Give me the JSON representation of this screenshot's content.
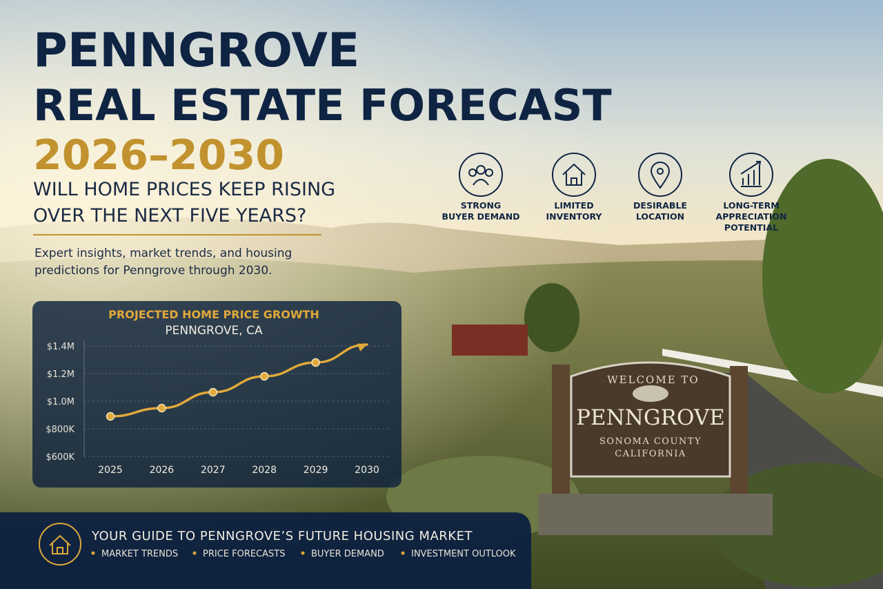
{
  "header": {
    "title_lines": [
      "PENNGROVE",
      "REAL ESTATE FORECAST"
    ],
    "years": "2026–2030",
    "question_lines": [
      "WILL HOME PRICES KEEP RISING",
      "OVER THE NEXT FIVE YEARS?"
    ],
    "subtitle_lines": [
      "Expert insights, market trends, and housing",
      "predictions for Penngrove through 2030."
    ]
  },
  "features": [
    {
      "label_lines": [
        "STRONG",
        "BUYER DEMAND"
      ]
    },
    {
      "label_lines": [
        "LIMITED",
        "INVENTORY"
      ]
    },
    {
      "label_lines": [
        "DESIRABLE",
        "LOCATION"
      ]
    },
    {
      "label_lines": [
        "LONG-TERM",
        "APPRECIATION",
        "POTENTIAL"
      ]
    }
  ],
  "chart_data": {
    "type": "line",
    "title": "PROJECTED HOME PRICE GROWTH",
    "subtitle": "PENNGROVE, CA",
    "categories": [
      "2025",
      "2026",
      "2027",
      "2028",
      "2029",
      "2030"
    ],
    "values": [
      890000,
      950000,
      1065000,
      1180000,
      1280000,
      1410000
    ],
    "color": "#e0a93a",
    "ylim": [
      600000,
      1450000
    ],
    "yticks": [
      {
        "value": 600000,
        "label": "$600K"
      },
      {
        "value": 800000,
        "label": "$800K"
      },
      {
        "value": 1000000,
        "label": "$1.0M"
      },
      {
        "value": 1200000,
        "label": "$1.2M"
      },
      {
        "value": 1400000,
        "label": "$1.4M"
      }
    ],
    "grid": true
  },
  "footer": {
    "title": "YOUR GUIDE TO PENNGROVE’S FUTURE HOUSING MARKET",
    "bullets": [
      "MARKET TRENDS",
      "PRICE FORECASTS",
      "BUYER DEMAND",
      "INVESTMENT OUTLOOK"
    ]
  },
  "sign": {
    "lines": [
      "WELCOME TO",
      "PENNGROVE",
      "SONOMA COUNTY",
      "CALIFORNIA"
    ]
  }
}
